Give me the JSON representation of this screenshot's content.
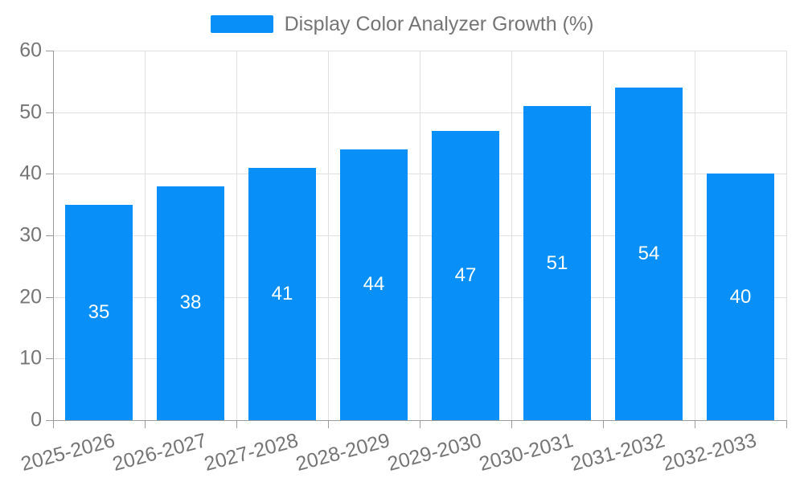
{
  "legend": {
    "label": "Display Color Analyzer Growth (%)"
  },
  "chart_data": {
    "type": "bar",
    "title": "Display Color Analyzer Growth (%)",
    "categories": [
      "2025-2026",
      "2026-2027",
      "2027-2028",
      "2028-2029",
      "2029-2030",
      "2030-2031",
      "2031-2032",
      "2032-2033"
    ],
    "values": [
      35,
      38,
      41,
      44,
      47,
      51,
      54,
      40
    ],
    "xlabel": "",
    "ylabel": "",
    "ylim": [
      0,
      60
    ],
    "yticks": [
      0,
      10,
      20,
      30,
      40,
      50,
      60
    ],
    "grid": true,
    "legend_position": "top",
    "bar_value_labels": "centered-white"
  },
  "colors": {
    "bar": "#0890F8",
    "bar_label": "#FFFFFF",
    "text": "#757575",
    "gridline": "#E0E0E0",
    "axis_line": "#9B9B9B",
    "background": "#FFFFFF"
  }
}
